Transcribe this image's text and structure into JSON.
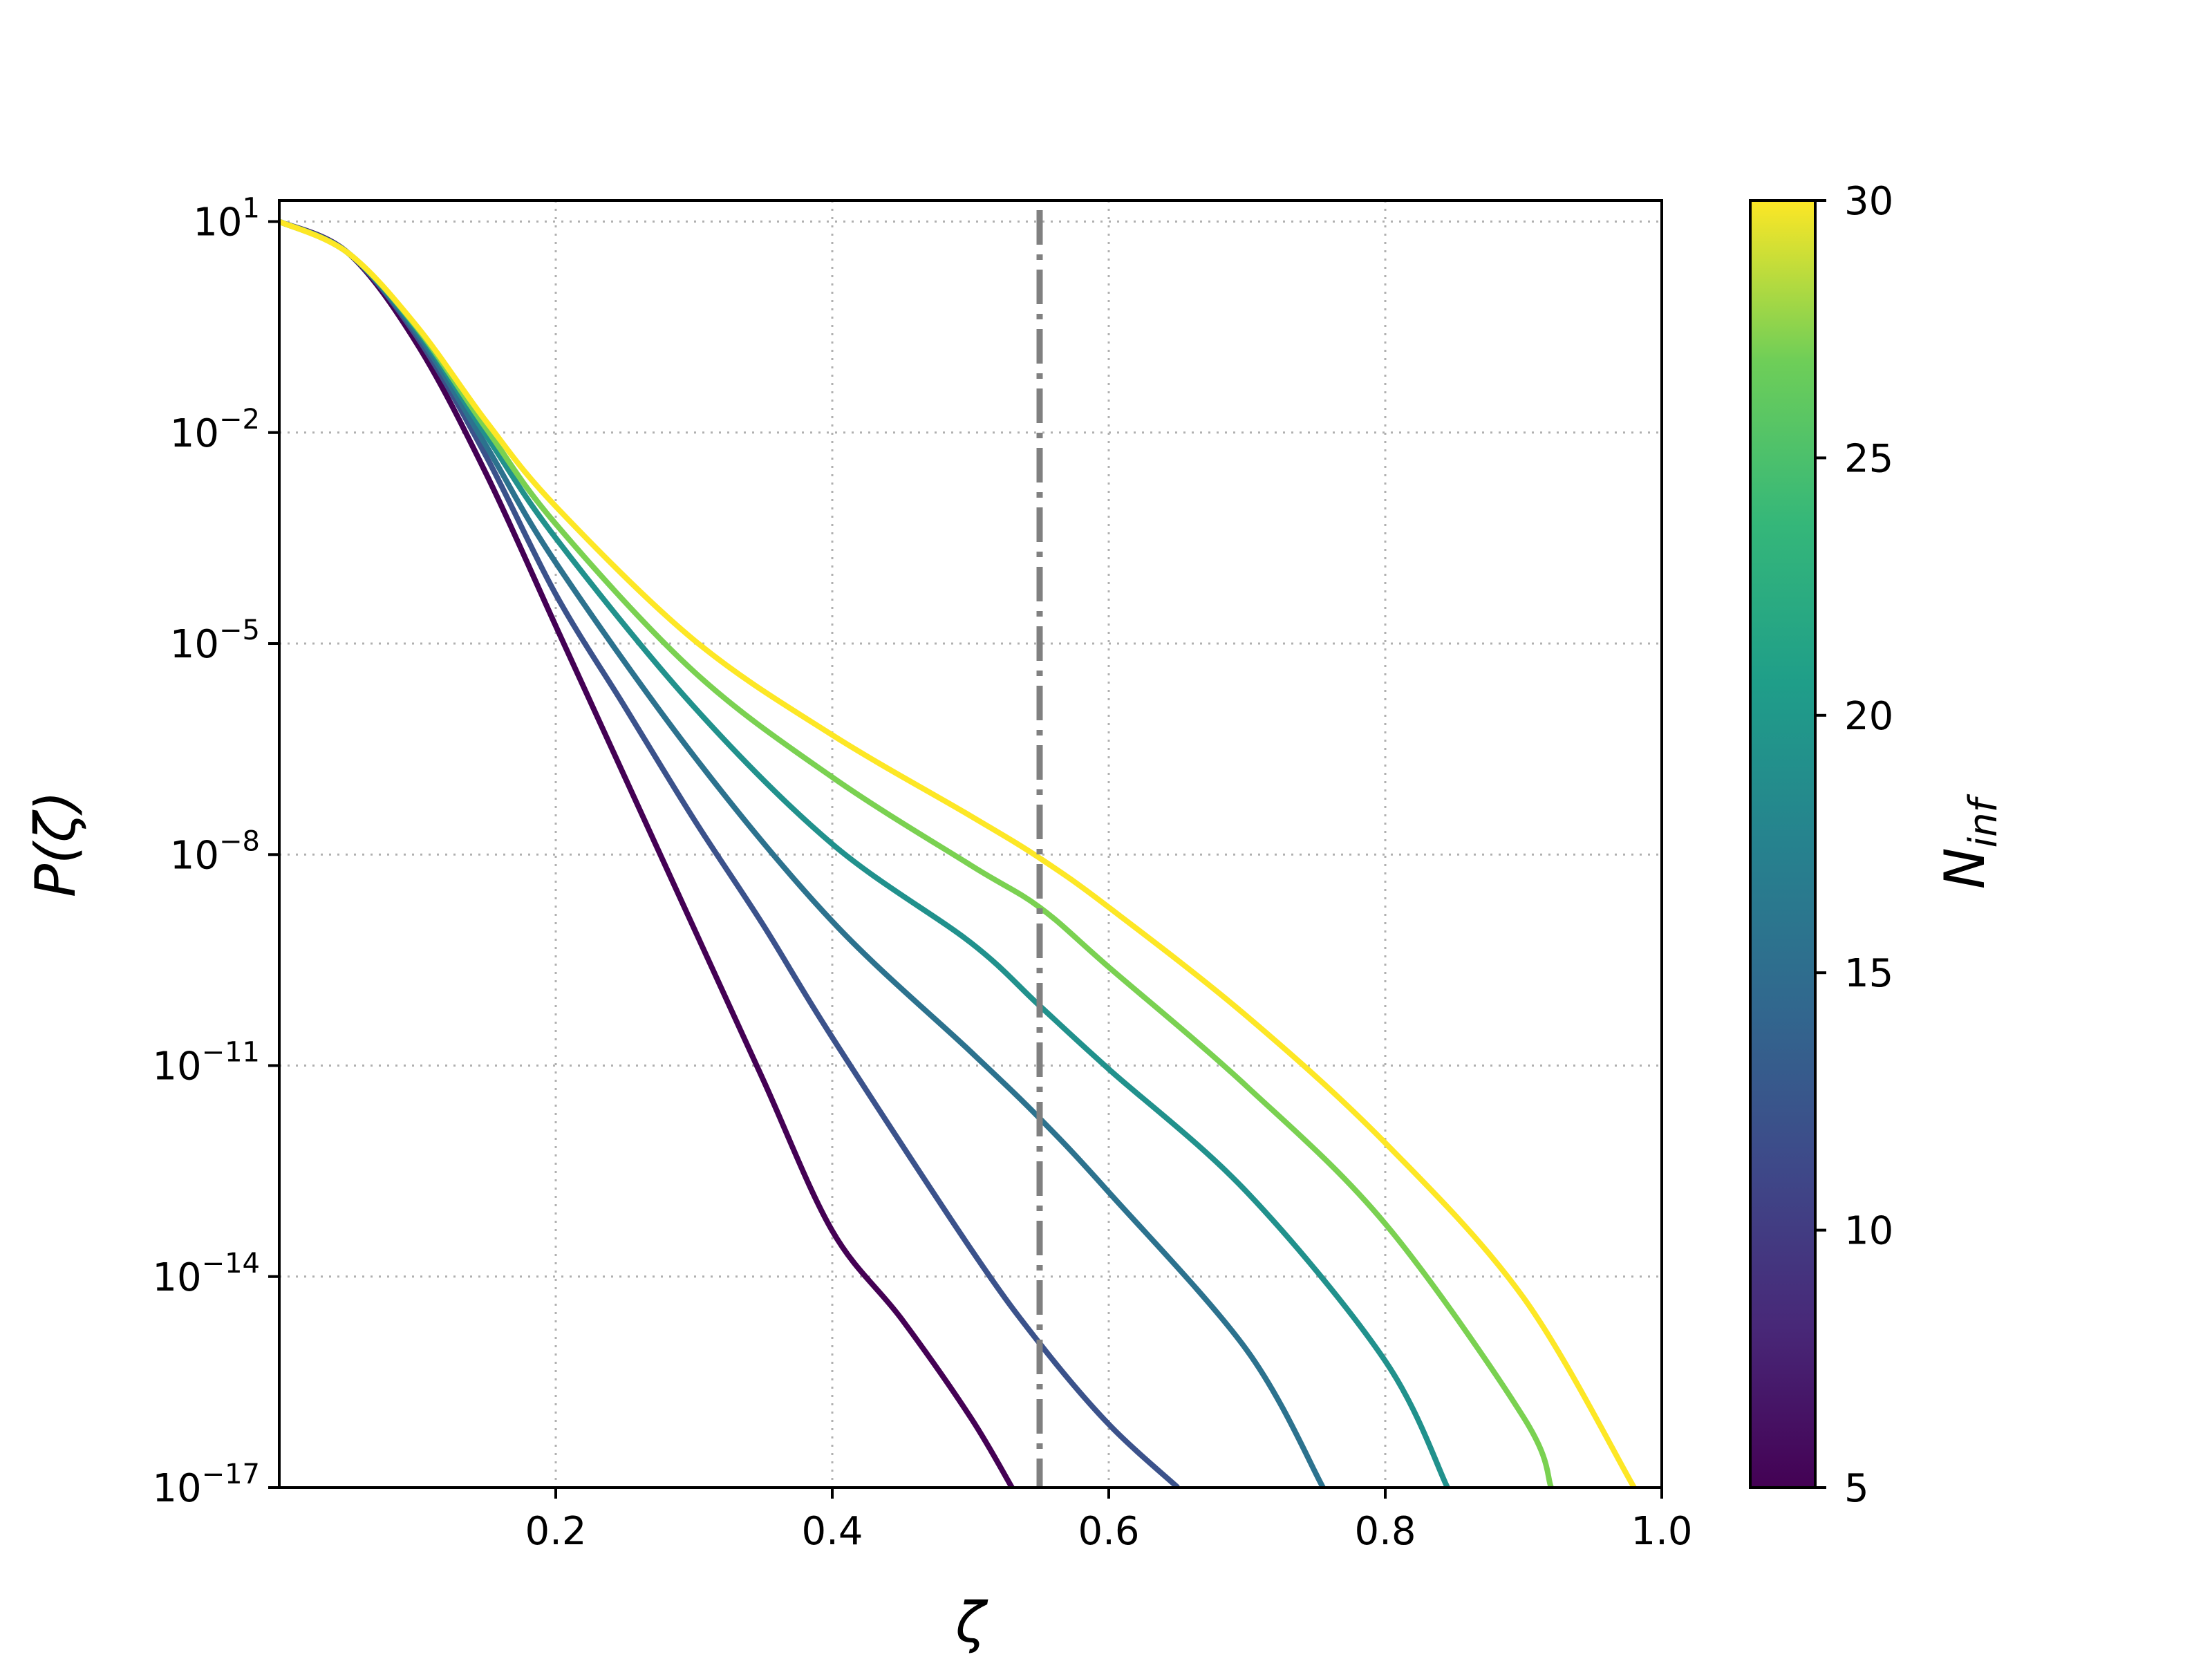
{
  "chart_data": {
    "type": "line",
    "title": "",
    "xlabel": "ζ",
    "ylabel": "P(ζ)",
    "x_scale": "linear",
    "y_scale": "log",
    "xlim": [
      0.0,
      1.0
    ],
    "ylim_log10": [
      -17,
      1.3
    ],
    "x_ticks": [
      {
        "value": 0.2,
        "label": "0.2"
      },
      {
        "value": 0.4,
        "label": "0.4"
      },
      {
        "value": 0.6,
        "label": "0.6"
      },
      {
        "value": 0.8,
        "label": "0.8"
      },
      {
        "value": 1.0,
        "label": "1.0"
      }
    ],
    "y_ticks": [
      {
        "exp": 1,
        "base": "10",
        "sup": "1"
      },
      {
        "exp": -2,
        "base": "10",
        "sup": "−2"
      },
      {
        "exp": -5,
        "base": "10",
        "sup": "−5"
      },
      {
        "exp": -8,
        "base": "10",
        "sup": "−8"
      },
      {
        "exp": -11,
        "base": "10",
        "sup": "−11"
      },
      {
        "exp": -14,
        "base": "10",
        "sup": "−14"
      },
      {
        "exp": -17,
        "base": "10",
        "sup": "−17"
      }
    ],
    "grid": true,
    "grid_style": "dotted",
    "reference_line": {
      "x": 0.55,
      "style": "dash-dot",
      "color": "#808080"
    },
    "colormap": "viridis",
    "colorbar": {
      "label": "N",
      "label_sub": "inf",
      "min": 5,
      "max": 30,
      "ticks": [
        5,
        10,
        15,
        20,
        25,
        30
      ]
    },
    "series_note_values_are_log10_P": true,
    "series": [
      {
        "n_inf": 5,
        "color": "#440154",
        "points": [
          [
            0.0,
            1.0
          ],
          [
            0.05,
            0.55
          ],
          [
            0.1,
            -0.75
          ],
          [
            0.15,
            -2.6
          ],
          [
            0.2,
            -4.75
          ],
          [
            0.25,
            -6.9
          ],
          [
            0.3,
            -9.05
          ],
          [
            0.35,
            -11.2
          ],
          [
            0.4,
            -13.35
          ],
          [
            0.45,
            -14.6
          ],
          [
            0.5,
            -16.0
          ],
          [
            0.53,
            -17.0
          ]
        ]
      },
      {
        "n_inf": 10,
        "color": "#3b528b",
        "points": [
          [
            0.0,
            1.0
          ],
          [
            0.05,
            0.55
          ],
          [
            0.1,
            -0.65
          ],
          [
            0.15,
            -2.35
          ],
          [
            0.2,
            -4.3
          ],
          [
            0.25,
            -5.9
          ],
          [
            0.3,
            -7.5
          ],
          [
            0.35,
            -9.0
          ],
          [
            0.4,
            -10.6
          ],
          [
            0.5,
            -13.6
          ],
          [
            0.55,
            -14.95
          ],
          [
            0.6,
            -16.1
          ],
          [
            0.65,
            -17.0
          ]
        ]
      },
      {
        "n_inf": 15,
        "color": "#2c728e",
        "points": [
          [
            0.0,
            1.0
          ],
          [
            0.05,
            0.55
          ],
          [
            0.1,
            -0.6
          ],
          [
            0.15,
            -2.2
          ],
          [
            0.2,
            -3.85
          ],
          [
            0.3,
            -6.6
          ],
          [
            0.4,
            -8.95
          ],
          [
            0.5,
            -10.8
          ],
          [
            0.55,
            -11.75
          ],
          [
            0.6,
            -12.8
          ],
          [
            0.7,
            -15.05
          ],
          [
            0.755,
            -17.0
          ]
        ]
      },
      {
        "n_inf": 20,
        "color": "#21918c",
        "points": [
          [
            0.0,
            1.0
          ],
          [
            0.05,
            0.55
          ],
          [
            0.1,
            -0.55
          ],
          [
            0.15,
            -2.05
          ],
          [
            0.2,
            -3.5
          ],
          [
            0.3,
            -5.9
          ],
          [
            0.4,
            -7.85
          ],
          [
            0.5,
            -9.25
          ],
          [
            0.55,
            -10.15
          ],
          [
            0.6,
            -11.05
          ],
          [
            0.7,
            -12.8
          ],
          [
            0.8,
            -15.2
          ],
          [
            0.845,
            -17.0
          ]
        ]
      },
      {
        "n_inf": 25,
        "color": "#7ad151",
        "points": [
          [
            0.0,
            1.0
          ],
          [
            0.05,
            0.55
          ],
          [
            0.1,
            -0.52
          ],
          [
            0.15,
            -1.95
          ],
          [
            0.2,
            -3.3
          ],
          [
            0.3,
            -5.4
          ],
          [
            0.4,
            -6.9
          ],
          [
            0.5,
            -8.15
          ],
          [
            0.55,
            -8.75
          ],
          [
            0.6,
            -9.6
          ],
          [
            0.7,
            -11.3
          ],
          [
            0.8,
            -13.25
          ],
          [
            0.9,
            -16.0
          ],
          [
            0.92,
            -17.0
          ]
        ]
      },
      {
        "n_inf": 30,
        "color": "#fde725",
        "points": [
          [
            0.0,
            1.0
          ],
          [
            0.05,
            0.55
          ],
          [
            0.1,
            -0.5
          ],
          [
            0.15,
            -1.85
          ],
          [
            0.2,
            -3.05
          ],
          [
            0.3,
            -4.95
          ],
          [
            0.4,
            -6.3
          ],
          [
            0.5,
            -7.45
          ],
          [
            0.55,
            -8.05
          ],
          [
            0.6,
            -8.75
          ],
          [
            0.7,
            -10.3
          ],
          [
            0.8,
            -12.1
          ],
          [
            0.9,
            -14.3
          ],
          [
            0.98,
            -17.0
          ]
        ]
      }
    ]
  }
}
